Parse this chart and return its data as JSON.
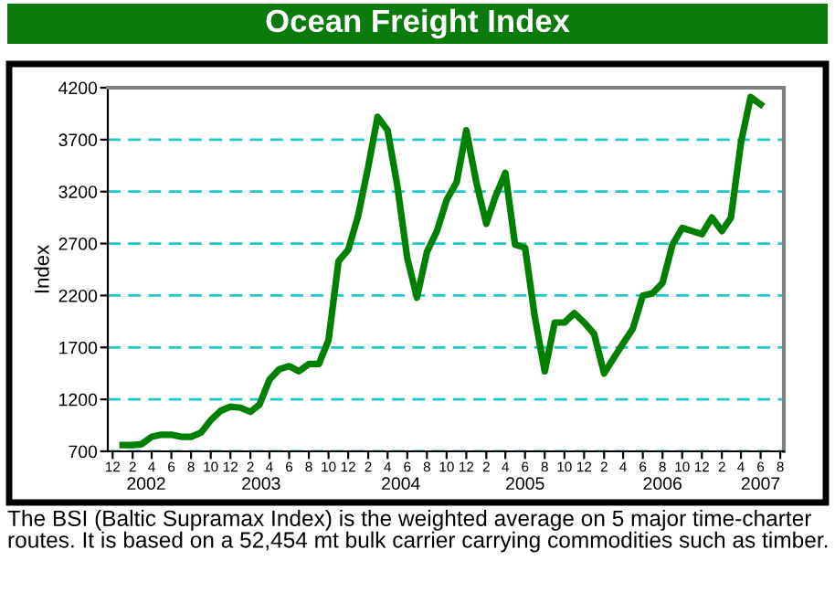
{
  "chart_data": {
    "type": "line",
    "title": "Ocean Freight Index",
    "ylabel": "Index",
    "x": [
      "2002-01",
      "2002-02",
      "2002-03",
      "2002-04",
      "2002-05",
      "2002-06",
      "2002-07",
      "2002-08",
      "2002-09",
      "2002-10",
      "2002-11",
      "2002-12",
      "2003-01",
      "2003-02",
      "2003-03",
      "2003-04",
      "2003-05",
      "2003-06",
      "2003-07",
      "2003-08",
      "2003-09",
      "2003-10",
      "2003-11",
      "2003-12",
      "2004-01",
      "2004-02",
      "2004-03",
      "2004-04",
      "2004-05",
      "2004-06",
      "2004-07",
      "2004-08",
      "2004-09",
      "2004-10",
      "2004-11",
      "2004-12",
      "2005-01",
      "2005-02",
      "2005-03",
      "2005-04",
      "2005-05",
      "2005-06",
      "2005-07",
      "2005-08",
      "2005-09",
      "2005-10",
      "2005-11",
      "2005-12",
      "2006-01",
      "2006-02",
      "2006-03",
      "2006-04",
      "2006-05",
      "2006-06",
      "2006-07",
      "2006-08",
      "2006-09",
      "2006-10",
      "2006-11",
      "2006-12",
      "2007-01",
      "2007-02",
      "2007-03",
      "2007-04",
      "2007-05",
      "2007-06"
    ],
    "series": [
      {
        "color": "#008000",
        "values": [
          760,
          760,
          770,
          840,
          860,
          860,
          840,
          840,
          880,
          1000,
          1090,
          1130,
          1120,
          1080,
          1150,
          1390,
          1490,
          1520,
          1470,
          1540,
          1540,
          1770,
          2530,
          2640,
          2970,
          3440,
          3920,
          3790,
          3260,
          2560,
          2180,
          2620,
          2820,
          3120,
          3290,
          3790,
          3290,
          2890,
          3150,
          3380,
          2690,
          2660,
          2000,
          1470,
          1940,
          1940,
          2030,
          1940,
          1830,
          1450,
          1590,
          1740,
          1880,
          2200,
          2220,
          2320,
          2690,
          2850,
          2820,
          2790,
          2950,
          2820,
          2950,
          3670,
          4110,
          4040
        ]
      }
    ],
    "xlim": [
      "2001-11-16",
      "2007-08-12"
    ],
    "xticks": [
      {
        "value": "2001-12",
        "label": "12"
      },
      {
        "value": "2002-02",
        "label": "2"
      },
      {
        "value": "2002-04",
        "label": "4"
      },
      {
        "value": "2002-06",
        "label": "6"
      },
      {
        "value": "2002-08",
        "label": "8"
      },
      {
        "value": "2002-10",
        "label": "10"
      },
      {
        "value": "2002-12",
        "label": "12"
      },
      {
        "value": "2003-02",
        "label": "2"
      },
      {
        "value": "2003-04",
        "label": "4"
      },
      {
        "value": "2003-06",
        "label": "6"
      },
      {
        "value": "2003-08",
        "label": "8"
      },
      {
        "value": "2003-10",
        "label": "10"
      },
      {
        "value": "2003-12",
        "label": "12"
      },
      {
        "value": "2004-02",
        "label": "2"
      },
      {
        "value": "2004-04",
        "label": "4"
      },
      {
        "value": "2004-06",
        "label": "6"
      },
      {
        "value": "2004-08",
        "label": "8"
      },
      {
        "value": "2004-10",
        "label": "10"
      },
      {
        "value": "2004-12",
        "label": "12"
      },
      {
        "value": "2005-02",
        "label": "2"
      },
      {
        "value": "2005-04",
        "label": "4"
      },
      {
        "value": "2005-06",
        "label": "6"
      },
      {
        "value": "2005-08",
        "label": "8"
      },
      {
        "value": "2005-10",
        "label": "10"
      },
      {
        "value": "2005-12",
        "label": "12"
      },
      {
        "value": "2006-02",
        "label": "2"
      },
      {
        "value": "2006-04",
        "label": "4"
      },
      {
        "value": "2006-06",
        "label": "6"
      },
      {
        "value": "2006-08",
        "label": "8"
      },
      {
        "value": "2006-10",
        "label": "10"
      },
      {
        "value": "2006-12",
        "label": "12"
      },
      {
        "value": "2007-02",
        "label": "2"
      },
      {
        "value": "2007-04",
        "label": "4"
      },
      {
        "value": "2007-06",
        "label": "6"
      },
      {
        "value": "2007-08",
        "label": "8"
      }
    ],
    "x2lim": [
      "2001-11-16",
      "2007-08-12"
    ],
    "x2ticks": [
      {
        "value": "2002-03-15",
        "label": "2002"
      },
      {
        "value": "2003-03-06",
        "label": "2003"
      },
      {
        "value": "2004-05-12",
        "label": "2004"
      },
      {
        "value": "2005-06-01",
        "label": "2005"
      },
      {
        "value": "2006-08-01",
        "label": "2006"
      },
      {
        "value": "2007-06-01",
        "label": "2007"
      }
    ],
    "ylim": [
      700,
      4200
    ],
    "yticks": [
      700,
      1200,
      1700,
      2200,
      2700,
      3200,
      3700,
      4200
    ],
    "grid": "y",
    "marker": "none",
    "line_style": "solid",
    "legend": false,
    "annotations": [
      "The BSI (Baltic Supramax Index) is the weighted average on 5 major time-charter routes. It is based on a 52,454 mt bulk carrier carrying commodities such as timber."
    ]
  }
}
